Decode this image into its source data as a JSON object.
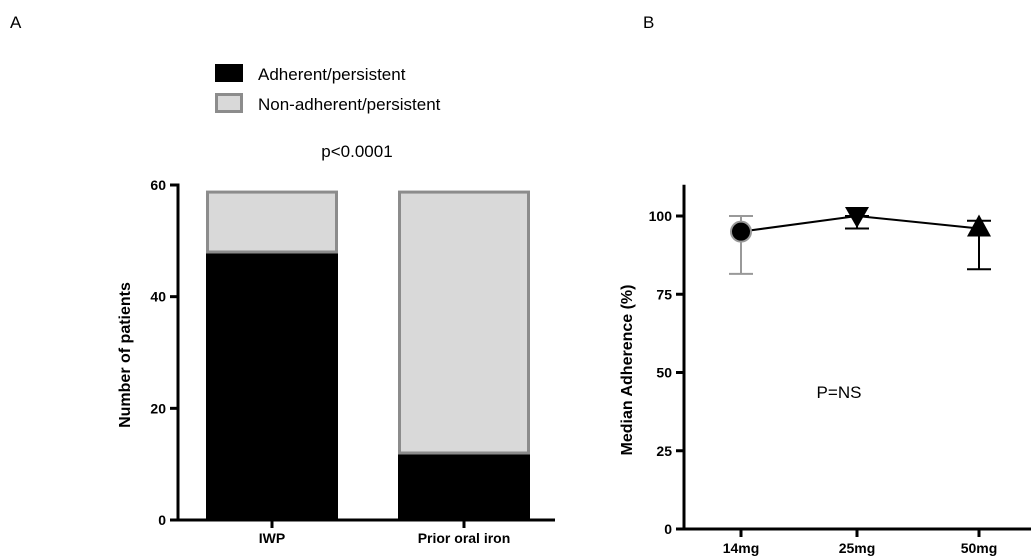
{
  "panels": {
    "a": "A",
    "b": "B"
  },
  "chart_data": [
    {
      "type": "bar",
      "stacked": true,
      "categories": [
        "IWP",
        "Prior oral iron"
      ],
      "series": [
        {
          "name": "Adherent/persistent",
          "values": [
            48,
            12
          ],
          "color": "#000000"
        },
        {
          "name": "Non-adherent/persistent",
          "values": [
            11,
            47
          ],
          "color": "#d9d9d9",
          "edge_color": "#8c8c8c"
        }
      ],
      "ylabel": "Number of patients",
      "ylim": [
        0,
        60
      ],
      "yticks": [
        0,
        20,
        40,
        60
      ],
      "annotation": "p<0.0001",
      "legend_position": "top",
      "grid": false
    },
    {
      "type": "scatter",
      "categories": [
        "14mg",
        "25mg",
        "50mg"
      ],
      "series": [
        {
          "values": [
            95,
            100,
            96
          ],
          "lower": [
            81.5,
            96,
            83
          ],
          "upper": [
            100,
            100,
            98.5
          ],
          "markers": [
            "circle",
            "triangle-down",
            "triangle-up"
          ],
          "error_colors": [
            "#999999",
            "#000000",
            "#000000"
          ],
          "connected": true
        }
      ],
      "ylabel": "Median Adherence (%)",
      "ylim": [
        0,
        110
      ],
      "yticks": [
        0,
        25,
        50,
        75,
        100
      ],
      "annotation": "P=NS",
      "grid": false
    }
  ]
}
